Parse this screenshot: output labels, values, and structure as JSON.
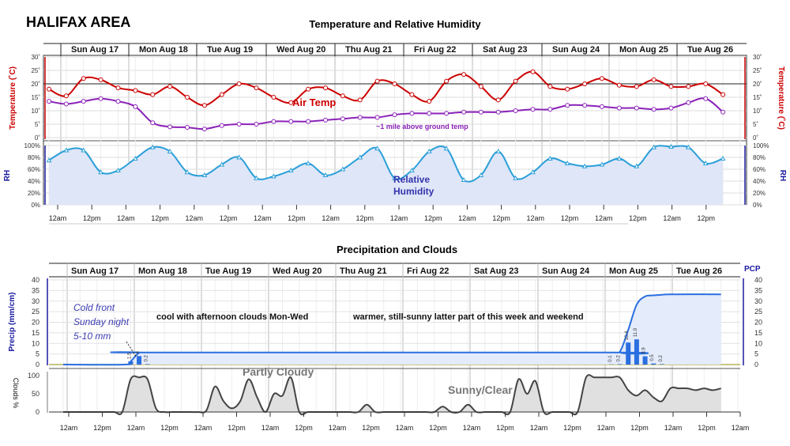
{
  "page_title": "HALIFAX AREA",
  "days": [
    "Sun Aug 17",
    "Mon Aug 18",
    "Tue Aug 19",
    "Wed Aug 20",
    "Thu Aug 21",
    "Fri Aug 22",
    "Sat Aug 23",
    "Sun Aug 24",
    "Mon Aug 25",
    "Tue Aug 26"
  ],
  "time_ticks_top": [
    "12am",
    "12pm",
    "12am",
    "12pm",
    "12am",
    "12pm",
    "12am",
    "12pm",
    "12am",
    "12pm",
    "12am",
    "12pm",
    "12am",
    "12pm",
    "12am",
    "12pm",
    "12am",
    "12pm",
    "12am",
    "12pm"
  ],
  "time_ticks_bottom": [
    "12am",
    "12pm",
    "12am",
    "12pm",
    "12am",
    "12pm",
    "12am",
    "12pm",
    "12am",
    "12pm",
    "12am",
    "12pm",
    "12am",
    "12pm",
    "12am",
    "12pm",
    "12am",
    "12pm",
    "12am",
    "12pm",
    "12am"
  ],
  "colors": {
    "temp": "#cc0000",
    "upper_temp": "#8b22b8",
    "rh": "#2a9fd8",
    "rh_label": "#3333aa",
    "precip_line": "#2a6fe0",
    "precip_bar": "#2a6fe0",
    "pcp_axis": "#1a1aa0",
    "cloud": "#444444"
  },
  "chart_data": [
    {
      "type": "line",
      "title": "Temperature and Relative Humidity",
      "ylabel_left": "Temperature (˚C)",
      "ylabel_right": "Temperature (˚C)",
      "y_ticks": [
        "0˚",
        "5˚",
        "10˚",
        "15˚",
        "20˚",
        "25˚",
        "30˚"
      ],
      "ylim": [
        0,
        30
      ],
      "reference_line": 20,
      "x_unit": "hours from Sun Aug 17 12am",
      "series": [
        {
          "name": "Air Temp",
          "label": "Air Temp",
          "x": [
            0,
            6,
            12,
            18,
            24,
            30,
            36,
            42,
            48,
            54,
            60,
            66,
            72,
            78,
            84,
            90,
            96,
            102,
            108,
            114,
            120,
            126,
            132,
            138,
            144,
            150,
            156,
            162,
            168,
            174,
            180,
            186,
            192,
            198,
            204,
            210,
            216,
            222,
            228,
            234
          ],
          "values": [
            18,
            15.5,
            22,
            21.5,
            18.5,
            17.5,
            16,
            19,
            15,
            12,
            16,
            20,
            18.5,
            15,
            13,
            18,
            18.5,
            15.5,
            14,
            21,
            20,
            16,
            13.5,
            21,
            23.5,
            19,
            14,
            21,
            24.5,
            19,
            18,
            20,
            22,
            19.5,
            19,
            21.5,
            19,
            19,
            20,
            16
          ]
        },
        {
          "name": "~1 mile above ground temp",
          "label": "~1 mile above ground temp",
          "x": [
            0,
            6,
            12,
            18,
            24,
            30,
            36,
            42,
            48,
            54,
            60,
            66,
            72,
            78,
            84,
            90,
            96,
            102,
            108,
            114,
            120,
            126,
            132,
            138,
            144,
            150,
            156,
            162,
            168,
            174,
            180,
            186,
            192,
            198,
            204,
            210,
            216,
            222,
            228,
            234
          ],
          "values": [
            13.5,
            12.5,
            13.5,
            14.5,
            13.5,
            11.5,
            5.5,
            4,
            3.8,
            3.2,
            4.5,
            5,
            5,
            6,
            6,
            6,
            6.5,
            7,
            7.5,
            7.5,
            8.5,
            9,
            9,
            9,
            9.5,
            9.5,
            9.5,
            10,
            10.5,
            10.5,
            12,
            12,
            11.5,
            11,
            11,
            10.5,
            11,
            13,
            14.5,
            9.5
          ]
        }
      ]
    },
    {
      "type": "area",
      "title": "Relative Humidity",
      "ylabel_left": "RH",
      "ylabel_right": "RH",
      "y_ticks": [
        "0%",
        "20%",
        "40%",
        "60%",
        "80%",
        "100%"
      ],
      "ylim": [
        0,
        100
      ],
      "series": [
        {
          "name": "Relative Humidity",
          "label_line1": "Relative",
          "label_line2": "Humidity",
          "x": [
            0,
            6,
            12,
            18,
            24,
            30,
            36,
            42,
            48,
            54,
            60,
            66,
            72,
            78,
            84,
            90,
            96,
            102,
            108,
            114,
            120,
            126,
            132,
            138,
            144,
            150,
            156,
            162,
            168,
            174,
            180,
            186,
            192,
            198,
            204,
            210,
            216,
            222,
            228,
            234
          ],
          "values": [
            75,
            92,
            92,
            55,
            58,
            78,
            97,
            90,
            55,
            50,
            68,
            80,
            45,
            48,
            58,
            70,
            50,
            60,
            80,
            95,
            45,
            58,
            90,
            95,
            42,
            50,
            90,
            45,
            55,
            78,
            70,
            65,
            68,
            78,
            65,
            97,
            98,
            97,
            70,
            78
          ]
        }
      ]
    },
    {
      "type": "bar",
      "title": "Precipitation and Clouds",
      "ylabel_left": "Precip (mm/cm)",
      "ylabel_right": "PCP",
      "y_ticks": [
        "0",
        "5",
        "10",
        "15",
        "20",
        "25",
        "30",
        "35",
        "40"
      ],
      "ylim": [
        0,
        40
      ],
      "bars": [
        {
          "x": 24,
          "value": 1.5,
          "label": "1.5"
        },
        {
          "x": 27,
          "value": 4,
          "label": "4"
        },
        {
          "x": 30,
          "value": 0.2,
          "label": "0.2"
        },
        {
          "x": 195,
          "value": 0.1,
          "label": "0.1"
        },
        {
          "x": 198,
          "value": 0.2,
          "label": "0.2"
        },
        {
          "x": 201,
          "value": 10.4,
          "label": "10.4"
        },
        {
          "x": 204,
          "value": 11.9,
          "label": "11.9"
        },
        {
          "x": 207,
          "value": 3.9,
          "label": "3.9"
        },
        {
          "x": 210,
          "value": 0.5,
          "label": "0.5"
        },
        {
          "x": 213,
          "value": 0.2,
          "label": "0.2"
        }
      ],
      "cumulative": {
        "x": [
          0,
          22,
          24,
          27,
          30,
          195,
          198,
          201,
          204,
          207,
          210,
          213,
          216,
          234
        ],
        "values": [
          0,
          0,
          1.5,
          5.5,
          5.7,
          5.7,
          6,
          16.4,
          28.3,
          32.2,
          32.7,
          33,
          33.2,
          33.2
        ]
      }
    },
    {
      "type": "area",
      "title": "Clouds",
      "ylabel_left": "Clouds %",
      "y_ticks": [
        "0",
        "50",
        "100"
      ],
      "ylim": [
        0,
        100
      ],
      "series": [
        {
          "name": "Clouds",
          "x": [
            0,
            6,
            12,
            18,
            21,
            24,
            27,
            30,
            33,
            36,
            39,
            42,
            45,
            48,
            51,
            54,
            57,
            60,
            63,
            66,
            69,
            72,
            75,
            78,
            81,
            84,
            87,
            90,
            93,
            96,
            99,
            102,
            105,
            108,
            111,
            114,
            117,
            120,
            123,
            126,
            129,
            132,
            135,
            138,
            141,
            144,
            147,
            150,
            153,
            156,
            159,
            162,
            165,
            168,
            171,
            174,
            177,
            180,
            183,
            186,
            189,
            192,
            195,
            198,
            201,
            204,
            207,
            210,
            213,
            216,
            219,
            222,
            225,
            228,
            231,
            234
          ],
          "values": [
            0,
            0,
            0,
            0,
            0,
            90,
            95,
            90,
            10,
            0,
            0,
            0,
            0,
            0,
            5,
            70,
            30,
            10,
            30,
            90,
            40,
            0,
            50,
            45,
            95,
            0,
            0,
            0,
            0,
            0,
            0,
            0,
            0,
            20,
            0,
            0,
            0,
            0,
            0,
            0,
            0,
            0,
            15,
            0,
            0,
            20,
            0,
            0,
            0,
            0,
            0,
            90,
            50,
            85,
            0,
            0,
            0,
            0,
            0,
            95,
            95,
            95,
            95,
            95,
            60,
            45,
            60,
            40,
            30,
            65,
            65,
            65,
            60,
            65,
            60,
            65
          ]
        }
      ]
    }
  ],
  "annotations": {
    "air_temp": "Air Temp",
    "upper_temp": "~1 mile above ground temp",
    "cold_front_line1": "Cold front",
    "cold_front_line2": "Sunday night",
    "cold_front_line3": "5-10 mm",
    "cool_text": "cool with afternoon clouds Mon-Wed",
    "warm_text": "warmer, still-sunny latter part of this week and weekend",
    "partly_cloudy": "Partly Cloudy",
    "sunny_clear": "Sunny/Clear",
    "pcp": "PCP"
  }
}
